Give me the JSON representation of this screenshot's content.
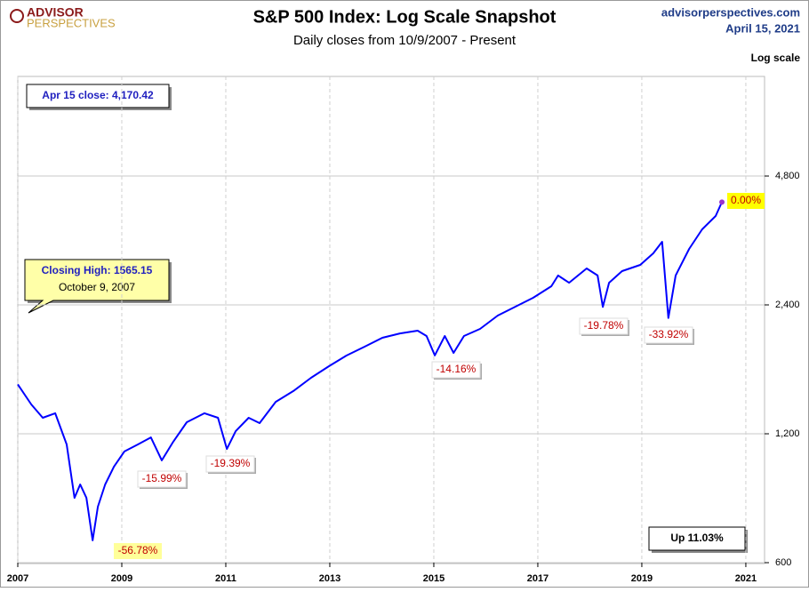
{
  "chart_data": {
    "type": "line",
    "title": "S&P 500 Index: Log Scale Snapshot",
    "subtitle": "Daily closes from 10/9/2007 - Present",
    "logo": [
      "ADVISOR",
      "PERSPECTIVES"
    ],
    "source": "advisorperspectives.com",
    "date": "April 15, 2021",
    "scale_label": "Log scale",
    "callouts": {
      "close": "Apr 15 close: 4,170.42",
      "high_title": "Closing High: 1565.15",
      "high_date": "October 9, 2007",
      "change": "Up 11.03%"
    },
    "annotations": [
      "-56.78%",
      "-15.99%",
      "-19.39%",
      "-14.16%",
      "-19.78%",
      "-33.92%",
      "0.00%"
    ],
    "color": "#0000ff",
    "yscale": "log",
    "grid": true,
    "xlim": [
      2007,
      2021.36
    ],
    "xticks": [
      2007,
      2009,
      2011,
      2013,
      2015,
      2017,
      2019,
      2021
    ],
    "ylim": [
      600,
      8200
    ],
    "yticks": [
      600,
      {
        "value": 1200,
        "label": "1,200"
      },
      {
        "value": 2400,
        "label": "2,400"
      },
      {
        "value": 4800,
        "label": "4,800"
      }
    ],
    "x": [
      2007,
      2007.26,
      2007.48,
      2007.72,
      2007.94,
      2008.09,
      2008.2,
      2008.32,
      2008.44,
      2008.54,
      2008.68,
      2008.85,
      2009.05,
      2009.31,
      2009.56,
      2009.77,
      2009.99,
      2010.25,
      2010.59,
      2010.85,
      2011.02,
      2011.19,
      2011.44,
      2011.65,
      2011.96,
      2012.3,
      2012.64,
      2012.98,
      2013.32,
      2013.67,
      2014.01,
      2014.35,
      2014.69,
      2014.86,
      2015.02,
      2015.21,
      2015.38,
      2015.58,
      2015.89,
      2016.23,
      2016.57,
      2016.91,
      2017.26,
      2017.39,
      2017.6,
      2017.94,
      2018.15,
      2018.25,
      2018.37,
      2018.62,
      2018.97,
      2019.22,
      2019.39,
      2019.51,
      2019.65,
      2019.91,
      2020.16,
      2020.42,
      2020.54
    ],
    "values": [
      1565.15,
      1405,
      1308,
      1340,
      1133,
      850,
      914,
      850,
      676.53,
      811,
      914,
      1006,
      1091,
      1133,
      1177,
      1040,
      1150,
      1277,
      1340,
      1308,
      1106,
      1217,
      1308,
      1271,
      1425,
      1510,
      1622,
      1725,
      1828,
      1917,
      2011,
      2059,
      2089,
      2030,
      1829,
      2030,
      1854,
      2030,
      2110,
      2266,
      2377,
      2494,
      2653,
      2811,
      2704,
      2920,
      2811,
      2374,
      2704,
      2878,
      2976,
      3167,
      3370,
      2237,
      2811,
      3243,
      3603,
      3871,
      4170.42
    ]
  }
}
